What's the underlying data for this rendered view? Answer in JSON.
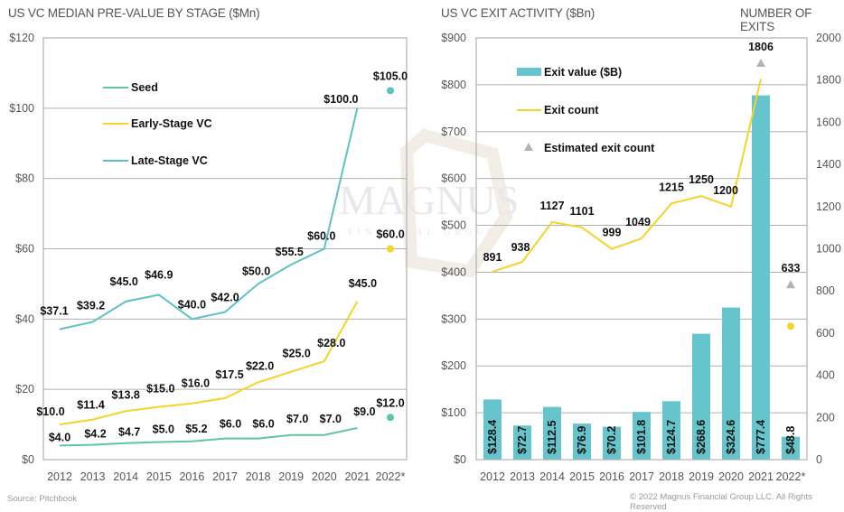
{
  "left_title": "US VC MEDIAN PRE-VALUE BY STAGE ($Mn)",
  "right_title": "US VC EXIT ACTIVITY ($Bn)",
  "right_secondary_title": "NUMBER OF EXITS",
  "source": "Source: Pitchbook",
  "copyright": "© 2022 Magnus Financial Group LLC. All Rights Reserved",
  "watermark": {
    "main": "MAGNUS",
    "sub": "FINANCIAL GROUP"
  },
  "colors": {
    "seed": "#5fc4a8",
    "early": "#f5d327",
    "late": "#5fc0c8",
    "bar": "#66c5cc",
    "estimate": "#b3b3b3",
    "grid": "#b0b0b0"
  },
  "chart_data": [
    {
      "type": "line",
      "title": "US VC MEDIAN PRE-VALUE BY STAGE ($Mn)",
      "xlabel": "",
      "ylabel": "",
      "categories": [
        "2012",
        "2013",
        "2014",
        "2015",
        "2016",
        "2017",
        "2018",
        "2019",
        "2020",
        "2021",
        "2022*"
      ],
      "ylim": [
        0,
        120
      ],
      "yticks": [
        0,
        20,
        40,
        60,
        80,
        100,
        120
      ],
      "ytick_labels": [
        "$0",
        "$20",
        "$40",
        "$60",
        "$80",
        "$100",
        "$120"
      ],
      "grid": true,
      "legend": "top-left",
      "series": [
        {
          "name": "Seed",
          "color_key": "seed",
          "values": [
            4.0,
            4.2,
            4.7,
            5.0,
            5.2,
            6.0,
            6.0,
            7.0,
            7.0,
            9.0,
            null
          ],
          "estimate": 12.0,
          "labels": [
            "$4.0",
            "$4.2",
            "$4.7",
            "$5.0",
            "$5.2",
            "$6.0",
            "$6.0",
            "$7.0",
            "$7.0",
            "$9.0",
            "$12.0"
          ]
        },
        {
          "name": "Early-Stage VC",
          "color_key": "early",
          "values": [
            10.0,
            11.4,
            13.8,
            15.0,
            16.0,
            17.5,
            22.0,
            25.0,
            28.0,
            45.0,
            null
          ],
          "estimate": 60.0,
          "labels": [
            "$10.0",
            "$11.4",
            "$13.8",
            "$15.0",
            "$16.0",
            "$17.5",
            "$22.0",
            "$25.0",
            "$28.0",
            "$45.0",
            "$60.0"
          ]
        },
        {
          "name": "Late-Stage VC",
          "color_key": "late",
          "values": [
            37.1,
            39.2,
            45.0,
            46.9,
            40.0,
            42.0,
            50.0,
            55.5,
            60.0,
            100.0,
            null
          ],
          "estimate": 105.0,
          "labels": [
            "$37.1",
            "$39.2",
            "$45.0",
            "$46.9",
            "$40.0",
            "$42.0",
            "$50.0",
            "$55.5",
            "$60.0",
            "$100.0",
            "$105.0"
          ]
        }
      ]
    },
    {
      "type": "bar",
      "title": "US VC EXIT ACTIVITY ($Bn)",
      "secondary_title": "NUMBER OF EXITS",
      "categories": [
        "2012",
        "2013",
        "2014",
        "2015",
        "2016",
        "2017",
        "2018",
        "2019",
        "2020",
        "2021",
        "2022*"
      ],
      "ylim": [
        0,
        900
      ],
      "yticks": [
        0,
        100,
        200,
        300,
        400,
        500,
        600,
        700,
        800,
        900
      ],
      "ytick_labels": [
        "$0",
        "$100",
        "$200",
        "$300",
        "$400",
        "$500",
        "$600",
        "$700",
        "$800",
        "$900"
      ],
      "y2lim": [
        0,
        2000
      ],
      "y2ticks": [
        0,
        200,
        400,
        600,
        800,
        1000,
        1200,
        1400,
        1600,
        1800,
        2000
      ],
      "y2tick_labels": [
        "0",
        "200",
        "400",
        "600",
        "800",
        "1000",
        "1200",
        "1400",
        "1600",
        "1800",
        "2000"
      ],
      "grid": true,
      "legend": "top-left",
      "series": [
        {
          "name": "Exit value ($B)",
          "type": "bar",
          "axis": "left",
          "color_key": "bar",
          "values": [
            128.4,
            72.7,
            112.5,
            76.9,
            70.2,
            101.8,
            124.7,
            268.6,
            324.6,
            777.4,
            48.8
          ],
          "labels": [
            "$128.4",
            "$72.7",
            "$112.5",
            "$76.9",
            "$70.2",
            "$101.8",
            "$124.7",
            "$268.6",
            "$324.6",
            "$777.4",
            "$48.8"
          ]
        },
        {
          "name": "Exit count",
          "type": "line",
          "axis": "right",
          "color_key": "early",
          "values": [
            891,
            938,
            1127,
            1101,
            999,
            1049,
            1215,
            1250,
            1200,
            1806,
            null
          ],
          "point_2022": 633,
          "labels": [
            "891",
            "938",
            "1127",
            "1101",
            "999",
            "1049",
            "1215",
            "1250",
            "1200",
            "1806",
            "633"
          ]
        },
        {
          "name": "Estimated exit count",
          "type": "scatter",
          "marker": "triangle",
          "axis": "right",
          "color_key": "estimate",
          "values": [
            null,
            null,
            null,
            null,
            null,
            null,
            null,
            null,
            null,
            1880,
            830
          ]
        }
      ]
    }
  ]
}
